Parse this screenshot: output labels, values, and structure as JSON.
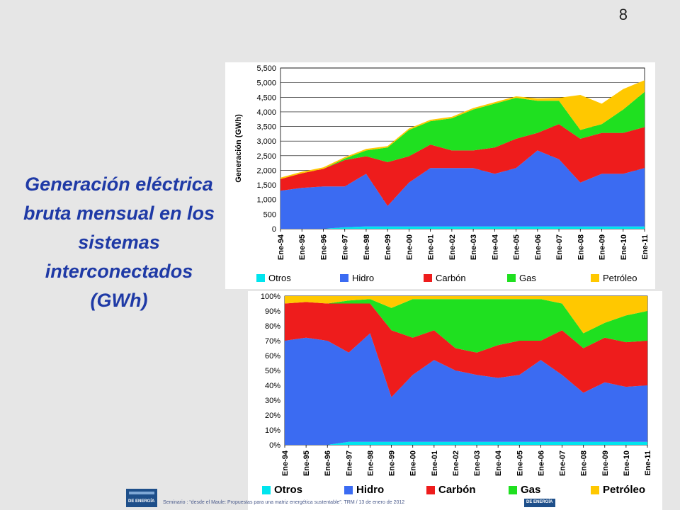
{
  "page_number": "8",
  "side_title": [
    "Generación eléctrica",
    "bruta mensual en los",
    "sistemas",
    "interconectados",
    "(GWh)"
  ],
  "footer_text": "Seminario : “desde el Maule: Propuestas para una matriz energética sustentable”. TRM  /  13 de enero de 2012",
  "logos": {
    "left_text": "DE ENERGÍA",
    "right_text": "DE ENERGÍA"
  },
  "colors": {
    "Otros": "#00e5ee",
    "Hidro": "#3b6bf2",
    "Carbón": "#ee1c1c",
    "Gas": "#1fe020",
    "Petróleo": "#ffc800"
  },
  "chart_data": [
    {
      "type": "area",
      "stacked": true,
      "ylabel": "Generación (GWh)",
      "ylim": [
        0,
        5500
      ],
      "yticks": [
        "0",
        "500",
        "1,000",
        "1,500",
        "2,000",
        "2,500",
        "3,000",
        "3,500",
        "4,000",
        "4,500",
        "5,000",
        "5,500"
      ],
      "grid": true,
      "legend": "bottom",
      "x": [
        "Ene-94",
        "Ene-95",
        "Ene-96",
        "Ene-97",
        "Ene-98",
        "Ene-99",
        "Ene-00",
        "Ene-01",
        "Ene-02",
        "Ene-03",
        "Ene-04",
        "Ene-05",
        "Ene-06",
        "Ene-07",
        "Ene-08",
        "Ene-09",
        "Ene-10",
        "Ene-11"
      ],
      "series": [
        {
          "name": "Otros",
          "values": [
            0,
            0,
            0,
            50,
            80,
            80,
            80,
            80,
            80,
            80,
            80,
            80,
            80,
            80,
            80,
            80,
            80,
            80
          ]
        },
        {
          "name": "Hidro",
          "values": [
            1300,
            1400,
            1450,
            1400,
            1800,
            700,
            1500,
            2000,
            2000,
            2000,
            1800,
            2000,
            2600,
            2300,
            1500,
            1800,
            1800,
            2000
          ]
        },
        {
          "name": "Carbón",
          "values": [
            400,
            500,
            600,
            900,
            600,
            1500,
            900,
            800,
            600,
            600,
            900,
            1000,
            600,
            1200,
            1500,
            1400,
            1400,
            1400
          ]
        },
        {
          "name": "Gas",
          "values": [
            0,
            0,
            0,
            50,
            200,
            500,
            900,
            800,
            1100,
            1400,
            1500,
            1400,
            1100,
            800,
            300,
            300,
            800,
            1200
          ]
        },
        {
          "name": "Petróleo",
          "values": [
            50,
            50,
            50,
            50,
            50,
            50,
            50,
            50,
            50,
            50,
            50,
            50,
            80,
            100,
            1200,
            700,
            700,
            400
          ]
        }
      ]
    },
    {
      "type": "area",
      "stacked": true,
      "percent": true,
      "ylim": [
        0,
        100
      ],
      "yticks": [
        "0%",
        "10%",
        "20%",
        "30%",
        "40%",
        "50%",
        "60%",
        "70%",
        "80%",
        "90%",
        "100%"
      ],
      "grid": true,
      "legend": "bottom",
      "x": [
        "Ene-94",
        "Ene-95",
        "Ene-96",
        "Ene-97",
        "Ene-98",
        "Ene-99",
        "Ene-00",
        "Ene-01",
        "Ene-02",
        "Ene-03",
        "Ene-04",
        "Ene-05",
        "Ene-06",
        "Ene-07",
        "Ene-08",
        "Ene-09",
        "Ene-10",
        "Ene-11"
      ],
      "series": [
        {
          "name": "Otros",
          "values": [
            0,
            0,
            0,
            2,
            2,
            2,
            2,
            2,
            2,
            2,
            2,
            2,
            2,
            2,
            2,
            2,
            2,
            2
          ]
        },
        {
          "name": "Hidro",
          "values": [
            70,
            72,
            70,
            60,
            73,
            30,
            45,
            55,
            48,
            45,
            43,
            45,
            55,
            45,
            33,
            40,
            37,
            38
          ]
        },
        {
          "name": "Carbón",
          "values": [
            25,
            24,
            25,
            33,
            20,
            45,
            25,
            20,
            15,
            15,
            22,
            23,
            13,
            30,
            30,
            30,
            30,
            30
          ]
        },
        {
          "name": "Gas",
          "values": [
            0,
            0,
            0,
            2,
            3,
            15,
            26,
            21,
            33,
            36,
            31,
            28,
            28,
            18,
            10,
            10,
            18,
            20
          ]
        },
        {
          "name": "Petróleo",
          "values": [
            5,
            4,
            5,
            3,
            2,
            8,
            2,
            2,
            2,
            2,
            2,
            2,
            2,
            5,
            25,
            18,
            13,
            10
          ]
        }
      ]
    }
  ]
}
